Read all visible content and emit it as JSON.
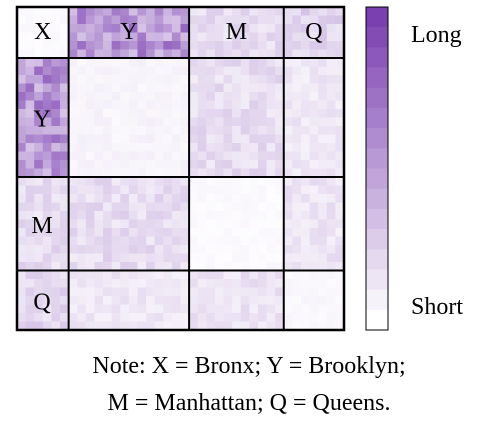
{
  "chart_data": {
    "type": "heatmap",
    "groups": [
      {
        "label": "X",
        "size": 6
      },
      {
        "label": "Y",
        "size": 14
      },
      {
        "label": "M",
        "size": 11
      },
      {
        "label": "Q",
        "size": 7
      }
    ],
    "block_levels": [
      [
        0.03,
        0.55,
        0.18,
        0.22
      ],
      [
        0.55,
        0.06,
        0.18,
        0.12
      ],
      [
        0.18,
        0.18,
        0.03,
        0.14
      ],
      [
        0.22,
        0.12,
        0.14,
        0.04
      ]
    ],
    "colorbar": {
      "top_label": "Long",
      "bottom_label": "Short",
      "low_color": "#ffffff",
      "high_color": "#7a3fb0"
    },
    "note_lines": [
      "Note: X = Bronx; Y = Brooklyn;",
      "M = Manhattan; Q = Queens."
    ]
  }
}
